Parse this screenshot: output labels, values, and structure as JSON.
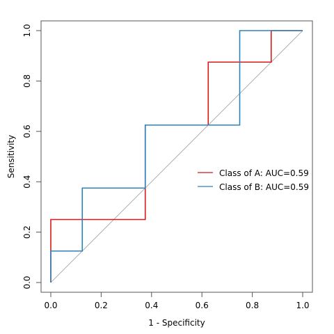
{
  "chart_data": {
    "type": "line",
    "title": "",
    "xlabel": "1 - Specificity",
    "ylabel": "Sensitivity",
    "xlim": [
      0,
      1
    ],
    "ylim": [
      0,
      1
    ],
    "x_ticks": [
      "0.0",
      "0.2",
      "0.4",
      "0.6",
      "0.8",
      "1.0"
    ],
    "y_ticks": [
      "0.0",
      "0.2",
      "0.4",
      "0.6",
      "0.8",
      "1.0"
    ],
    "grid": false,
    "legend_position": "right-center",
    "reference_line": {
      "from": [
        0,
        0
      ],
      "to": [
        1,
        1
      ],
      "color": "#b0b0b0"
    },
    "series": [
      {
        "name": "Class of A: AUC=0.59",
        "color": "#d7191c",
        "points": [
          [
            0,
            0
          ],
          [
            0,
            0.25
          ],
          [
            0.375,
            0.25
          ],
          [
            0.375,
            0.625
          ],
          [
            0.625,
            0.625
          ],
          [
            0.625,
            0.875
          ],
          [
            0.875,
            0.875
          ],
          [
            0.875,
            1
          ],
          [
            1,
            1
          ]
        ]
      },
      {
        "name": "Class of B: AUC=0.59",
        "color": "#2b83ba",
        "points": [
          [
            0,
            0
          ],
          [
            0,
            0.125
          ],
          [
            0.125,
            0.125
          ],
          [
            0.125,
            0.375
          ],
          [
            0.375,
            0.375
          ],
          [
            0.375,
            0.625
          ],
          [
            0.75,
            0.625
          ],
          [
            0.75,
            1
          ],
          [
            1,
            1
          ]
        ]
      }
    ]
  }
}
